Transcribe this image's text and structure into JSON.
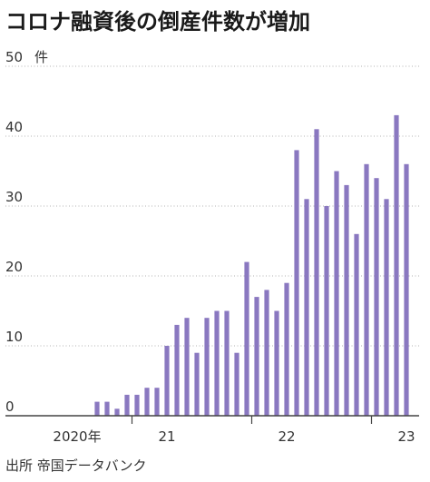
{
  "title": "コロナ融資後の倒産件数が増加",
  "source": "出所 帝国データバンク",
  "y_unit": "件",
  "chart_data": {
    "type": "bar",
    "title": "コロナ融資後の倒産件数が増加",
    "xlabel": "",
    "ylabel": "件",
    "ylim": [
      0,
      50
    ],
    "yticks": [
      0,
      10,
      20,
      30,
      40,
      50
    ],
    "year_labels": [
      {
        "label": "2020年",
        "index": 3
      },
      {
        "label": "21",
        "index": 12
      },
      {
        "label": "22",
        "index": 24
      },
      {
        "label": "23",
        "index": 36
      }
    ],
    "year_dividers": [
      8,
      20,
      32
    ],
    "values": [
      2,
      2,
      1,
      3,
      3,
      4,
      4,
      10,
      13,
      14,
      9,
      14,
      15,
      15,
      9,
      22,
      17,
      18,
      15,
      19,
      38,
      31,
      41,
      30,
      35,
      33,
      26,
      36,
      34,
      31,
      43,
      36
    ],
    "start_index": 5,
    "total_slots": 38,
    "bar_color": "#8a78c0",
    "grid": true
  }
}
